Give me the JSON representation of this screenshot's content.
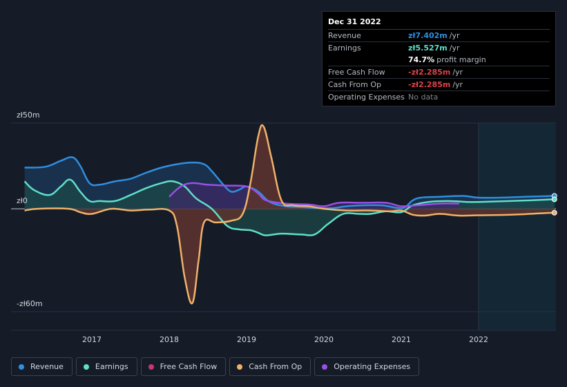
{
  "tooltip": {
    "date": "Dec 31 2022",
    "rows": [
      {
        "label": "Revenue",
        "value": "zł7.402m",
        "unit": "/yr",
        "color": "#2f8fe0"
      },
      {
        "label": "Earnings",
        "value": "zł5.527m",
        "unit": "/yr",
        "color": "#60e0c7"
      },
      {
        "label": "",
        "value": "74.7%",
        "unit": "profit margin",
        "color": "#ffffff"
      },
      {
        "label": "Free Cash Flow",
        "value": "-zł2.285m",
        "unit": "/yr",
        "color": "#e0424a"
      },
      {
        "label": "Cash From Op",
        "value": "-zł2.285m",
        "unit": "/yr",
        "color": "#e0424a"
      },
      {
        "label": "Operating Expenses",
        "value": "No data",
        "unit": "",
        "color": "#7d838d"
      }
    ]
  },
  "chart_data": {
    "type": "area",
    "ylabels": [
      "zł50m",
      "zł0",
      "-zł60m"
    ],
    "y_ticks": [
      50,
      0,
      -60
    ],
    "xlabels": [
      "2017",
      "2018",
      "2019",
      "2020",
      "2021",
      "2022"
    ],
    "x_ticks": [
      2017,
      2018,
      2019,
      2020,
      2021,
      2022
    ],
    "xlim": [
      2016.1,
      2022.98
    ],
    "ylim": [
      -60,
      50
    ],
    "forecast_start": 2022.0,
    "grid": true,
    "legend_position": "bottom",
    "series": [
      {
        "name": "Revenue",
        "color": "#2f8fe0",
        "fill": "#1b3b5c",
        "points": [
          [
            2016.13,
            24
          ],
          [
            2016.4,
            24.5
          ],
          [
            2016.6,
            28
          ],
          [
            2016.75,
            30
          ],
          [
            2016.85,
            25
          ],
          [
            2016.97,
            15
          ],
          [
            2017.1,
            14
          ],
          [
            2017.3,
            16
          ],
          [
            2017.5,
            17.5
          ],
          [
            2017.7,
            21
          ],
          [
            2017.9,
            24
          ],
          [
            2018.1,
            26
          ],
          [
            2018.3,
            27
          ],
          [
            2018.45,
            26
          ],
          [
            2018.55,
            22
          ],
          [
            2018.7,
            14
          ],
          [
            2018.8,
            10
          ],
          [
            2018.9,
            11
          ],
          [
            2019.0,
            13
          ],
          [
            2019.15,
            10
          ],
          [
            2019.3,
            4
          ],
          [
            2019.5,
            1.5
          ],
          [
            2019.7,
            1
          ],
          [
            2019.9,
            0.5
          ],
          [
            2020.1,
            0.3
          ],
          [
            2020.3,
            1.5
          ],
          [
            2020.5,
            2
          ],
          [
            2020.75,
            2
          ],
          [
            2020.95,
            0.5
          ],
          [
            2021.05,
            1
          ],
          [
            2021.2,
            6
          ],
          [
            2021.5,
            7
          ],
          [
            2021.8,
            7.5
          ],
          [
            2022.0,
            6.5
          ],
          [
            2022.3,
            6.5
          ],
          [
            2022.6,
            7
          ],
          [
            2022.98,
            7.5
          ]
        ]
      },
      {
        "name": "Earnings",
        "color": "#60e0c7",
        "fill": "#1d4a48",
        "points": [
          [
            2016.13,
            16
          ],
          [
            2016.25,
            11
          ],
          [
            2016.45,
            8
          ],
          [
            2016.6,
            13
          ],
          [
            2016.72,
            17
          ],
          [
            2016.85,
            10
          ],
          [
            2016.97,
            4.5
          ],
          [
            2017.1,
            4.5
          ],
          [
            2017.3,
            4.5
          ],
          [
            2017.5,
            8
          ],
          [
            2017.7,
            12
          ],
          [
            2017.9,
            15
          ],
          [
            2018.05,
            16
          ],
          [
            2018.2,
            13
          ],
          [
            2018.35,
            6
          ],
          [
            2018.55,
            0
          ],
          [
            2018.75,
            -10
          ],
          [
            2018.9,
            -12
          ],
          [
            2019.05,
            -12.5
          ],
          [
            2019.15,
            -14
          ],
          [
            2019.25,
            -15.5
          ],
          [
            2019.45,
            -14.5
          ],
          [
            2019.7,
            -15
          ],
          [
            2019.88,
            -15
          ],
          [
            2020.05,
            -9
          ],
          [
            2020.25,
            -3
          ],
          [
            2020.45,
            -3
          ],
          [
            2020.6,
            -3
          ],
          [
            2020.8,
            -1.5
          ],
          [
            2021.0,
            -2
          ],
          [
            2021.15,
            2
          ],
          [
            2021.35,
            4
          ],
          [
            2021.6,
            4.5
          ],
          [
            2021.85,
            4
          ],
          [
            2022.0,
            4
          ],
          [
            2022.4,
            4.5
          ],
          [
            2022.98,
            5.5
          ]
        ]
      },
      {
        "name": "Free Cash Flow",
        "color": "#b8356e",
        "fill": "#5a1f2b",
        "points": [
          [
            2016.13,
            -1
          ],
          [
            2016.3,
            0
          ],
          [
            2016.7,
            0
          ],
          [
            2016.85,
            -2
          ],
          [
            2017.0,
            -3
          ],
          [
            2017.25,
            0
          ],
          [
            2017.5,
            -1
          ],
          [
            2017.75,
            -0.5
          ],
          [
            2018.0,
            -1
          ],
          [
            2018.1,
            -10
          ],
          [
            2018.2,
            -40
          ],
          [
            2018.3,
            -55
          ],
          [
            2018.38,
            -30
          ],
          [
            2018.45,
            -8
          ],
          [
            2018.6,
            -8
          ],
          [
            2018.8,
            -7
          ],
          [
            2018.95,
            -3
          ],
          [
            2019.05,
            15
          ],
          [
            2019.15,
            42
          ],
          [
            2019.22,
            48
          ],
          [
            2019.32,
            30
          ],
          [
            2019.45,
            5
          ],
          [
            2019.6,
            2
          ],
          [
            2019.8,
            1.5
          ],
          [
            2020.0,
            0
          ],
          [
            2020.3,
            -1
          ],
          [
            2020.6,
            -1
          ],
          [
            2020.85,
            -1.5
          ],
          [
            2021.0,
            -1
          ],
          [
            2021.15,
            -3.5
          ],
          [
            2021.3,
            -4
          ],
          [
            2021.5,
            -3
          ],
          [
            2021.75,
            -4
          ],
          [
            2022.0,
            -3.8
          ],
          [
            2022.4,
            -3.5
          ],
          [
            2022.98,
            -2.3
          ]
        ]
      },
      {
        "name": "Cash From Op",
        "color": "#f0b26a",
        "fill": "#5e4032",
        "points": [
          [
            2016.13,
            -1
          ],
          [
            2016.3,
            0
          ],
          [
            2016.7,
            0
          ],
          [
            2016.85,
            -2
          ],
          [
            2017.0,
            -3
          ],
          [
            2017.25,
            0
          ],
          [
            2017.5,
            -1
          ],
          [
            2017.75,
            -0.5
          ],
          [
            2018.0,
            -1
          ],
          [
            2018.1,
            -10
          ],
          [
            2018.2,
            -40
          ],
          [
            2018.3,
            -55
          ],
          [
            2018.38,
            -30
          ],
          [
            2018.45,
            -8
          ],
          [
            2018.6,
            -8
          ],
          [
            2018.8,
            -7
          ],
          [
            2018.95,
            -3
          ],
          [
            2019.05,
            15
          ],
          [
            2019.15,
            42
          ],
          [
            2019.22,
            48
          ],
          [
            2019.32,
            30
          ],
          [
            2019.45,
            5
          ],
          [
            2019.6,
            2
          ],
          [
            2019.8,
            1.5
          ],
          [
            2020.0,
            0
          ],
          [
            2020.3,
            -1
          ],
          [
            2020.6,
            -1
          ],
          [
            2020.85,
            -1.5
          ],
          [
            2021.0,
            -1
          ],
          [
            2021.15,
            -3.5
          ],
          [
            2021.3,
            -4
          ],
          [
            2021.5,
            -3
          ],
          [
            2021.75,
            -4
          ],
          [
            2022.0,
            -3.8
          ],
          [
            2022.4,
            -3.5
          ],
          [
            2022.98,
            -2.3
          ]
        ]
      },
      {
        "name": "Operating Expenses",
        "color": "#9a4fe6",
        "fill": "#3e2a6a",
        "points": [
          [
            2018.0,
            7
          ],
          [
            2018.15,
            13
          ],
          [
            2018.3,
            15
          ],
          [
            2018.5,
            14
          ],
          [
            2018.75,
            13.5
          ],
          [
            2019.0,
            13
          ],
          [
            2019.15,
            9
          ],
          [
            2019.25,
            5
          ],
          [
            2019.5,
            3
          ],
          [
            2019.8,
            2.5
          ],
          [
            2020.0,
            1.5
          ],
          [
            2020.2,
            3.5
          ],
          [
            2020.5,
            3.5
          ],
          [
            2020.8,
            3.5
          ],
          [
            2021.0,
            1.5
          ],
          [
            2021.2,
            2
          ],
          [
            2021.5,
            3
          ],
          [
            2021.75,
            3
          ]
        ]
      }
    ]
  },
  "legend": [
    {
      "label": "Revenue",
      "color": "#2f8fe0"
    },
    {
      "label": "Earnings",
      "color": "#60e0c7"
    },
    {
      "label": "Free Cash Flow",
      "color": "#c8376f"
    },
    {
      "label": "Cash From Op",
      "color": "#f0b26a"
    },
    {
      "label": "Operating Expenses",
      "color": "#9a4fe6"
    }
  ]
}
